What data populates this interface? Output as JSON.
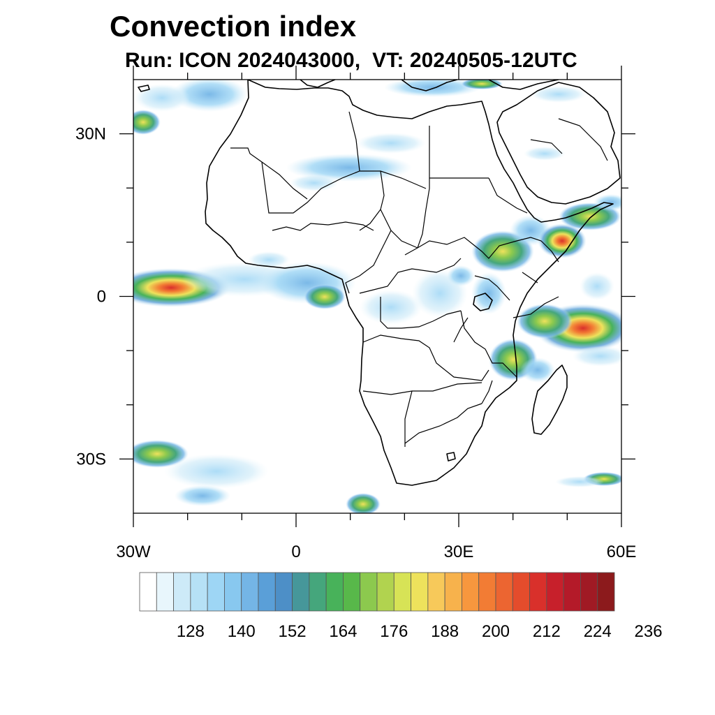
{
  "title": "Convection index",
  "subtitle": "Run: ICON 2024043000,  VT: 20240505-12UTC",
  "map": {
    "lon_range": [
      -30,
      60
    ],
    "lat_range": [
      -40,
      40
    ],
    "lat_ticks": [
      {
        "value": 30,
        "label": "30N"
      },
      {
        "value": 0,
        "label": "0"
      },
      {
        "value": -30,
        "label": "30S"
      }
    ],
    "lon_ticks": [
      {
        "value": -30,
        "label": "30W"
      },
      {
        "value": 0,
        "label": "0"
      },
      {
        "value": 30,
        "label": "30E"
      },
      {
        "value": 60,
        "label": "60E"
      }
    ]
  },
  "colorbar": {
    "colors": [
      "#ffffff",
      "#e8f6fc",
      "#cdeaf8",
      "#b6e1f6",
      "#9ed6f5",
      "#88c8ef",
      "#74b5e6",
      "#5a9fd8",
      "#4d8fc7",
      "#46979a",
      "#45a67c",
      "#48b25a",
      "#58b84a",
      "#8cc94e",
      "#b1d34f",
      "#d7e356",
      "#eee25c",
      "#f7c95a",
      "#f7b24c",
      "#f7973e",
      "#f27c34",
      "#ec6531",
      "#e44c2c",
      "#d9302b",
      "#c7202b",
      "#b41a29",
      "#a01a24",
      "#8c1a1c"
    ],
    "labels": [
      "128",
      "140",
      "152",
      "164",
      "176",
      "188",
      "200",
      "212",
      "224",
      "236"
    ]
  }
}
